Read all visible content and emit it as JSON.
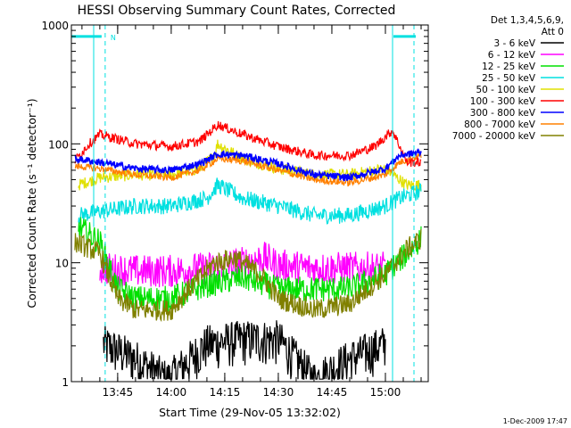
{
  "chart_data": {
    "type": "line",
    "title": "HESSI Observing Summary Count Rates, Corrected",
    "xlabel": "Start Time (29-Nov-05 13:32:02)",
    "ylabel": "Corrected Count Rate (s⁻¹ detector⁻¹)",
    "y_scale": "log",
    "ylim": [
      1,
      1000
    ],
    "xlim": [
      "13:32:02",
      "15:12:00"
    ],
    "x_ticks": [
      "13:45",
      "14:00",
      "14:15",
      "14:30",
      "14:45",
      "15:00"
    ],
    "y_ticks": [
      "1",
      "10",
      "100",
      "1000"
    ],
    "grid": false,
    "legend_position": "right",
    "legend_header": [
      "Det 1,3,4,5,6,9,",
      "Att 0"
    ],
    "timestamp": "1-Dec-2009 17:47",
    "annotation": {
      "text": "N"
    },
    "night_intervals": [
      [
        "13:32:02",
        "13:41:30"
      ],
      [
        "15:02:00",
        "15:12:00"
      ]
    ],
    "saa_flag_level": 800,
    "series": [
      {
        "name": "3 - 6 keV",
        "color": "#000000",
        "x": [
          "13:41:00",
          "13:50:00",
          "13:59:00",
          "14:10:00",
          "14:20:00",
          "14:30:00",
          "14:40:00",
          "14:50:00",
          "15:00:00"
        ],
        "y": [
          2.0,
          1.5,
          1.0,
          2.0,
          2.2,
          2.2,
          1.0,
          1.5,
          2.0
        ]
      },
      {
        "name": "6 - 12 keV",
        "color": "#ff00ff",
        "x": [
          "13:40:00",
          "13:50:00",
          "14:00:00",
          "14:10:00",
          "14:15:00",
          "14:20:00",
          "14:26:00",
          "14:30:00",
          "14:40:00",
          "14:50:00",
          "15:00:00"
        ],
        "y": [
          9.0,
          8.5,
          8.5,
          9.0,
          9.5,
          10.0,
          11.0,
          9.5,
          9.0,
          9.0,
          9.0
        ]
      },
      {
        "name": "12 - 25 keV",
        "color": "#00e000",
        "x": [
          "13:34:00",
          "13:40:00",
          "13:45:00",
          "13:50:00",
          "14:00:00",
          "14:10:00",
          "14:15:00",
          "14:20:00",
          "14:30:00",
          "14:40:00",
          "14:50:00",
          "15:00:00",
          "15:06:00",
          "15:10:00"
        ],
        "y": [
          20,
          15,
          6.0,
          5.0,
          5.0,
          6.5,
          7.0,
          7.5,
          6.0,
          6.0,
          6.0,
          8.0,
          12,
          16
        ]
      },
      {
        "name": "25 - 50 keV",
        "color": "#00e0e0",
        "x": [
          "13:34:00",
          "13:40:00",
          "13:50:00",
          "14:00:00",
          "14:10:00",
          "14:13:00",
          "14:20:00",
          "14:30:00",
          "14:40:00",
          "14:50:00",
          "15:00:00",
          "15:04:00",
          "15:10:00"
        ],
        "y": [
          25,
          27,
          30,
          30,
          35,
          45,
          35,
          30,
          25,
          25,
          30,
          35,
          40
        ]
      },
      {
        "name": "50 - 100 keV",
        "color": "#e0e000",
        "x": [
          "13:34:00",
          "13:40:00",
          "13:50:00",
          "14:00:00",
          "14:08:00",
          "14:12:00",
          "14:13:00",
          "14:20:00",
          "14:30:00",
          "14:40:00",
          "14:50:00",
          "15:00:00",
          "15:06:00",
          "15:10:00"
        ],
        "y": [
          45,
          52,
          55,
          55,
          62,
          80,
          100,
          75,
          62,
          55,
          55,
          62,
          45,
          45
        ]
      },
      {
        "name": "100 - 300 keV",
        "color": "#ff0000",
        "x": [
          "13:33:00",
          "13:37:00",
          "13:40:00",
          "13:50:00",
          "14:00:00",
          "14:08:00",
          "14:13:00",
          "14:20:00",
          "14:30:00",
          "14:40:00",
          "14:50:00",
          "14:57:00",
          "15:02:00",
          "15:06:00",
          "15:10:00"
        ],
        "y": [
          72,
          100,
          120,
          100,
          95,
          105,
          145,
          120,
          95,
          80,
          80,
          95,
          130,
          70,
          70
        ]
      },
      {
        "name": "300 - 800 keV",
        "color": "#0000ff",
        "x": [
          "13:33:00",
          "13:40:00",
          "13:50:00",
          "14:00:00",
          "14:08:00",
          "14:13:00",
          "14:20:00",
          "14:30:00",
          "14:40:00",
          "14:50:00",
          "15:00:00",
          "15:04:00",
          "15:10:00"
        ],
        "y": [
          75,
          70,
          62,
          60,
          68,
          82,
          80,
          68,
          55,
          52,
          62,
          80,
          85
        ]
      },
      {
        "name": "800 - 7000 keV",
        "color": "#ff8000",
        "x": [
          "13:33:00",
          "13:40:00",
          "13:50:00",
          "14:00:00",
          "14:08:00",
          "14:13:00",
          "14:20:00",
          "14:30:00",
          "14:40:00",
          "14:50:00",
          "15:00:00",
          "15:04:00",
          "15:10:00"
        ],
        "y": [
          65,
          62,
          55,
          52,
          60,
          75,
          72,
          60,
          50,
          47,
          55,
          70,
          80
        ]
      },
      {
        "name": "7000 - 20000 keV",
        "color": "#808000",
        "x": [
          "13:33:00",
          "13:40:00",
          "13:45:00",
          "13:50:00",
          "14:00:00",
          "14:05:00",
          "14:12:00",
          "14:18:00",
          "14:25:00",
          "14:30:00",
          "14:40:00",
          "14:50:00",
          "15:00:00",
          "15:06:00",
          "15:10:00"
        ],
        "y": [
          15,
          12,
          5.0,
          4.0,
          4.0,
          6.0,
          10,
          11,
          8.0,
          5.0,
          4.0,
          4.5,
          8.0,
          13,
          16
        ]
      }
    ]
  }
}
